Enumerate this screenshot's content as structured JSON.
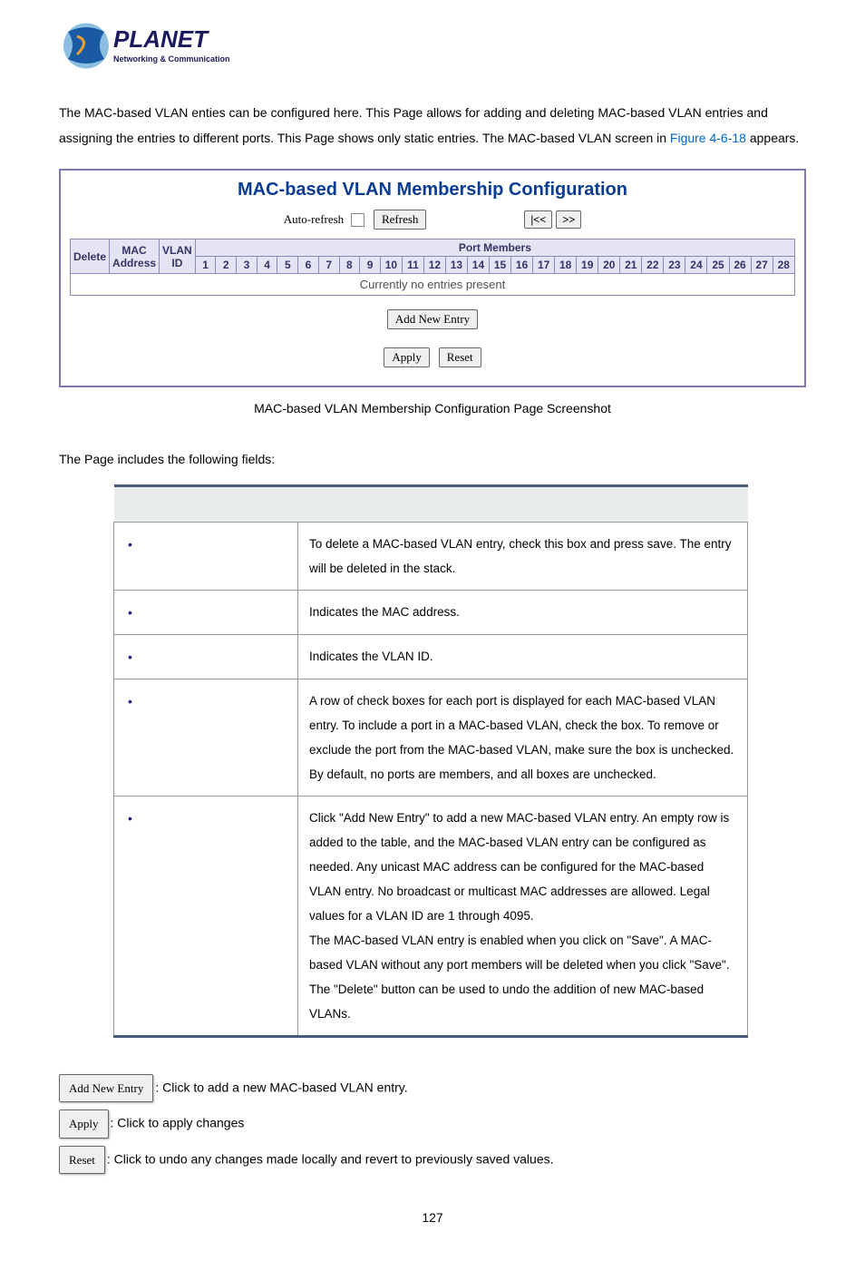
{
  "logo": {
    "text_top": "PLANET",
    "text_bottom": "Networking & Communication",
    "accent_color": "#1a5aa3",
    "dark_color": "#1a1a5e"
  },
  "intro": {
    "text_part1": "The MAC-based VLAN enties can be configured here. This Page allows for adding and deleting MAC-based VLAN entries and assigning the entries to different ports. This Page shows only static entries. The MAC-based VLAN screen in ",
    "figure_link": "Figure 4-6-18",
    "text_part2": " appears."
  },
  "panel": {
    "title": "MAC-based VLAN Membership Configuration",
    "auto_refresh_label": "Auto-refresh",
    "refresh_btn": "Refresh",
    "nav_prev": "|<<",
    "nav_next": ">>",
    "port_members_header": "Port Members",
    "col_delete": "Delete",
    "col_mac": "MAC Address",
    "col_vlan": "VLAN ID",
    "port_numbers": [
      "1",
      "2",
      "3",
      "4",
      "5",
      "6",
      "7",
      "8",
      "9",
      "10",
      "11",
      "12",
      "13",
      "14",
      "15",
      "16",
      "17",
      "18",
      "19",
      "20",
      "21",
      "22",
      "23",
      "24",
      "25",
      "26",
      "27",
      "28"
    ],
    "no_entries": "Currently no entries present",
    "add_new_entry_btn": "Add New Entry",
    "apply_btn": "Apply",
    "reset_btn": "Reset"
  },
  "caption": "MAC-based VLAN Membership Configuration Page Screenshot",
  "fields_intro": "The Page includes the following fields:",
  "fields": {
    "rows": [
      {
        "desc": "To delete a MAC-based VLAN entry, check this box and press save. The entry will be deleted in the stack."
      },
      {
        "desc": "Indicates the MAC address."
      },
      {
        "desc": "Indicates the VLAN ID."
      },
      {
        "desc": "A row of check boxes for each port is displayed for each MAC-based VLAN entry. To include a port in a MAC-based VLAN, check the box. To remove or exclude the port from the MAC-based VLAN, make sure the box is unchecked. By default, no ports are members, and all boxes are unchecked."
      },
      {
        "desc": "Click \"Add New Entry\" to add a new MAC-based VLAN entry. An empty row is added to the table, and the MAC-based VLAN entry can be configured as needed. Any unicast MAC address can be configured for the MAC-based VLAN entry. No broadcast or multicast MAC addresses are allowed. Legal values for a VLAN ID are 1 through 4095.\nThe MAC-based VLAN entry is enabled when you click on \"Save\". A MAC-based VLAN without any port members will be deleted when you click \"Save\".\nThe \"Delete\" button can be used to undo the addition of new MAC-based VLANs."
      }
    ]
  },
  "buttons_desc": {
    "add_new_entry": {
      "label": "Add New Entry",
      "desc": ": Click to add a new MAC-based VLAN entry."
    },
    "apply": {
      "label": "Apply",
      "desc": ": Click to apply changes"
    },
    "reset": {
      "label": "Reset",
      "desc": ": Click to undo any changes made locally and revert to previously saved values."
    }
  },
  "page_number": "127"
}
